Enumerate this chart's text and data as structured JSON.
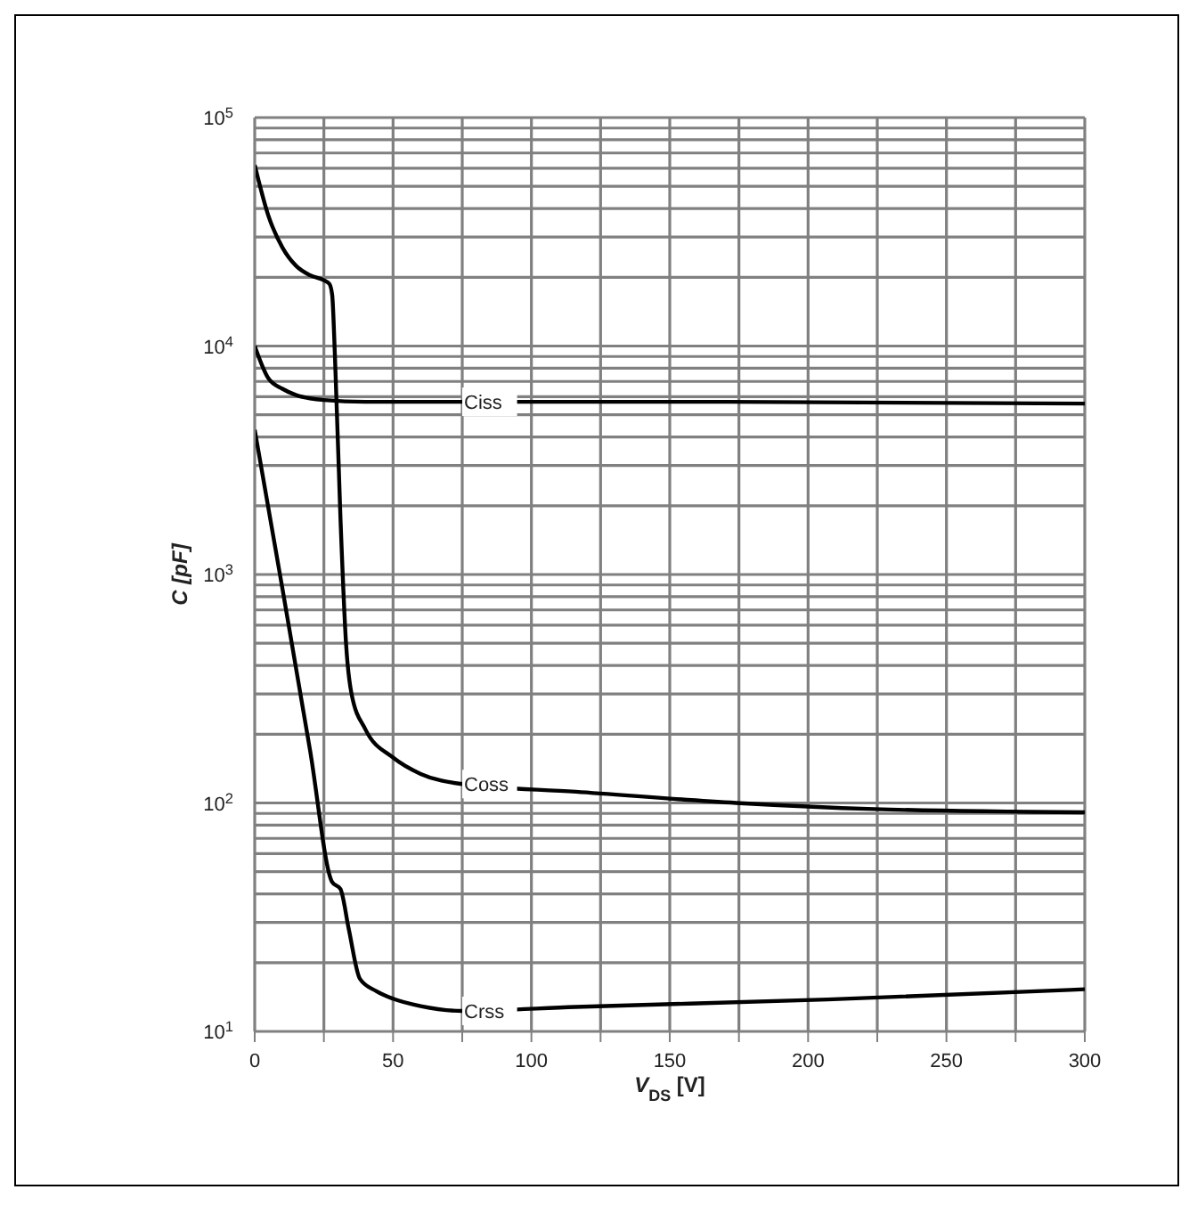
{
  "chart_data": {
    "type": "line",
    "xlabel": "V$_{DS}$ [V]",
    "ylabel": "C [pF]",
    "log": "y",
    "xlim": [
      0,
      300
    ],
    "ylim": [
      10,
      100000
    ],
    "xticks": [
      0,
      {
        "value": 25,
        "label": null
      },
      50,
      {
        "value": 75,
        "label": null
      },
      100,
      {
        "value": 125,
        "label": null
      },
      150,
      {
        "value": 175,
        "label": null
      },
      200,
      {
        "value": 225,
        "label": null
      },
      250,
      {
        "value": 275,
        "label": null
      },
      300
    ],
    "yticks": [
      {
        "value": 10,
        "label": "10$^{1}$"
      },
      {
        "value": 20,
        "label": null
      },
      {
        "value": 30,
        "label": null
      },
      {
        "value": 40,
        "label": null
      },
      {
        "value": 50,
        "label": null
      },
      {
        "value": 60,
        "label": null
      },
      {
        "value": 70,
        "label": null
      },
      {
        "value": 80,
        "label": null
      },
      {
        "value": 90,
        "label": null
      },
      {
        "value": 100,
        "label": "10$^{2}$"
      },
      {
        "value": 200,
        "label": null
      },
      {
        "value": 300,
        "label": null
      },
      {
        "value": 400,
        "label": null
      },
      {
        "value": 500,
        "label": null
      },
      {
        "value": 600,
        "label": null
      },
      {
        "value": 700,
        "label": null
      },
      {
        "value": 800,
        "label": null
      },
      {
        "value": 900,
        "label": null
      },
      {
        "value": 1000,
        "label": "10$^{3}$"
      },
      {
        "value": 2000,
        "label": null
      },
      {
        "value": 3000,
        "label": null
      },
      {
        "value": 4000,
        "label": null
      },
      {
        "value": 5000,
        "label": null
      },
      {
        "value": 6000,
        "label": null
      },
      {
        "value": 7000,
        "label": null
      },
      {
        "value": 8000,
        "label": null
      },
      {
        "value": 9000,
        "label": null
      },
      {
        "value": 10000,
        "label": "10$^{4}$"
      },
      {
        "value": 20000,
        "label": null
      },
      {
        "value": 30000,
        "label": null
      },
      {
        "value": 40000,
        "label": null
      },
      {
        "value": 50000,
        "label": null
      },
      {
        "value": 60000,
        "label": null
      },
      {
        "value": 70000,
        "label": null
      },
      {
        "value": 80000,
        "label": null
      },
      {
        "value": 90000,
        "label": null
      },
      {
        "value": 100000,
        "label": "10$^{5}$"
      }
    ],
    "grid": true,
    "marker": "none",
    "line_style": "solid",
    "series": [
      {
        "name": "Ciss",
        "color": "#000000",
        "x": [
          0,
          5,
          10,
          15,
          20,
          25,
          40,
          75,
          150,
          300
        ],
        "values": [
          10000,
          7200,
          6500,
          6100,
          5900,
          5800,
          5700,
          5700,
          5700,
          5600
        ]
      },
      {
        "name": "Coss",
        "color": "#000000",
        "x": [
          0,
          5,
          10,
          15,
          20,
          25,
          27,
          28,
          29,
          31,
          33,
          35,
          40,
          50,
          60,
          75,
          116,
          174,
          224,
          300
        ],
        "values": [
          62000,
          37000,
          27000,
          22400,
          20400,
          19400,
          18700,
          16700,
          9000,
          1750,
          500,
          300,
          210,
          158,
          134,
          121,
          112,
          100,
          94,
          91
        ]
      },
      {
        "name": "Crss",
        "color": "#000000",
        "x": [
          0,
          10,
          20,
          28,
          31,
          34,
          38,
          44,
          50,
          60,
          75,
          116,
          207,
          300
        ],
        "values": [
          4300,
          870,
          170,
          45,
          42,
          28,
          17,
          15,
          13.9,
          12.9,
          12.3,
          12.8,
          13.8,
          15.3
        ]
      }
    ]
  }
}
